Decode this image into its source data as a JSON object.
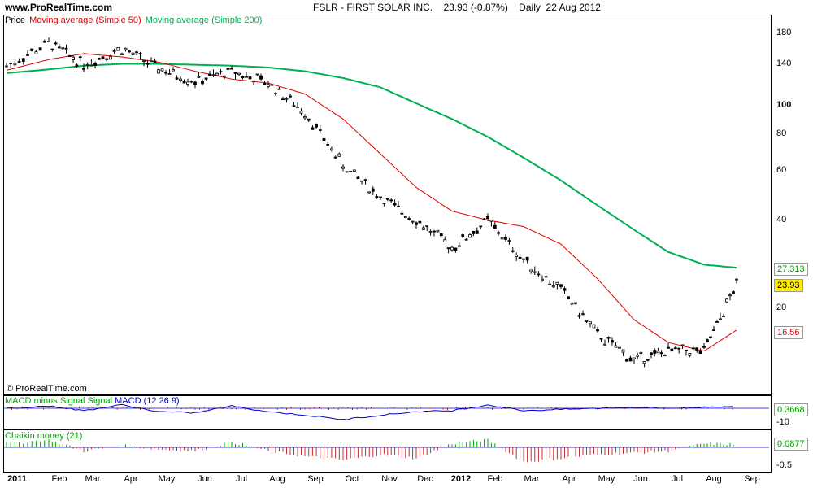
{
  "header": {
    "site": "www.ProRealTime.com",
    "title": "FSLR - FIRST SOLAR INC.    23.93 (-0.87%)    Daily  22 Aug 2012"
  },
  "legend": {
    "price": "Price",
    "ma50": "Moving average (Simple 50)",
    "ma200": "Moving average (Simple 200)"
  },
  "copyright": "© ProRealTime.com",
  "colors": {
    "ma50": "#e00000",
    "ma200": "#00b050",
    "macd_line": "#0000cc",
    "macd_hist": "#c00000",
    "chaikin_pos": "#00a000",
    "chaikin_neg": "#c03030",
    "tag_green": "#00a000",
    "tag_yellow": "#ffee00",
    "tag_red": "#e00000"
  },
  "price_axis": {
    "ticks": [
      "180",
      "140",
      "100",
      "80",
      "60",
      "40",
      "20"
    ],
    "bold": "100",
    "tags": {
      "ma200": "27.313",
      "last": "23.93",
      "ma50": "16.56"
    }
  },
  "macd": {
    "label_hist": "MACD minus Signal Signal",
    "label_line": "MACD (12 26 9)",
    "tick": "-10",
    "tag": "0.3668"
  },
  "chaikin": {
    "label": "Chaikin money (21)",
    "tick": "-0.5",
    "tag": "0.0877"
  },
  "x_axis": {
    "labels": [
      "2011",
      "Feb",
      "Mar",
      "Apr",
      "May",
      "Jun",
      "Jul",
      "Aug",
      "Sep",
      "Oct",
      "Nov",
      "Dec",
      "2012",
      "Feb",
      "Mar",
      "Apr",
      "May",
      "Jun",
      "Jul",
      "Aug",
      "Sep"
    ]
  },
  "chart_data": {
    "type": "line",
    "scale": "log",
    "series": [
      {
        "name": "Price",
        "x": [
          "2011-01",
          "2011-02",
          "2011-03",
          "2011-04",
          "2011-05",
          "2011-06",
          "2011-07",
          "2011-08",
          "2011-09",
          "2011-10",
          "2011-11",
          "2011-12",
          "2012-01",
          "2012-02",
          "2012-03",
          "2012-04",
          "2012-05",
          "2012-06",
          "2012-07",
          "2012-08",
          "2012-08-22"
        ],
        "values": [
          138,
          165,
          140,
          158,
          135,
          122,
          132,
          120,
          95,
          62,
          48,
          40,
          32,
          40,
          29,
          23,
          16,
          13,
          14,
          14,
          23.93
        ]
      },
      {
        "name": "Moving average (Simple 50)",
        "values": [
          133,
          145,
          152,
          148,
          142,
          132,
          124,
          120,
          110,
          90,
          68,
          52,
          43,
          40,
          38,
          33,
          25,
          18,
          15,
          14,
          16.56
        ]
      },
      {
        "name": "Moving average (Simple 200)",
        "values": [
          130,
          134,
          138,
          140,
          140,
          139,
          138,
          136,
          132,
          125,
          116,
          102,
          90,
          78,
          66,
          55,
          45,
          37,
          31,
          28,
          27.313
        ]
      }
    ],
    "macd": {
      "last": 0.3668
    },
    "chaikin": {
      "last": 0.0877
    }
  }
}
